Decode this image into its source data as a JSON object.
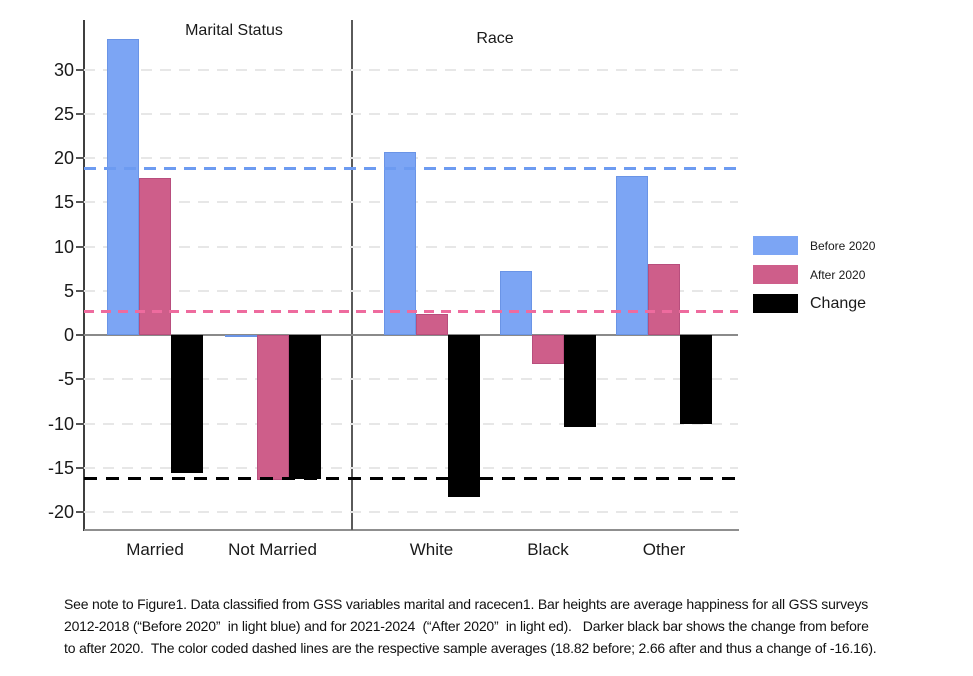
{
  "chart_data": {
    "type": "bar",
    "title": "",
    "ylabel": "",
    "xlabel": "",
    "ylim": [
      -22.0,
      35.6
    ],
    "yticks": [
      30,
      25,
      20,
      15,
      10,
      5,
      0,
      -5,
      -10,
      -15,
      -20
    ],
    "grid": "dashed horizontal",
    "legend_position": "right",
    "panels": [
      {
        "title": "Marital Status",
        "categories": [
          "Married",
          "Not Married"
        ],
        "series": [
          {
            "name": "Before 2020",
            "values": [
              33.4,
              -0.1
            ]
          },
          {
            "name": "After 2020",
            "values": [
              17.8,
              -16.3
            ]
          },
          {
            "name": "Change",
            "values": [
              -15.6,
              -16.2
            ]
          }
        ]
      },
      {
        "title": "Race",
        "categories": [
          "White",
          "Black",
          "Other"
        ],
        "series": [
          {
            "name": "Before 2020",
            "values": [
              20.7,
              7.2,
              18.0
            ]
          },
          {
            "name": "After 2020",
            "values": [
              2.4,
              -3.2,
              8.0
            ]
          },
          {
            "name": "Change",
            "values": [
              -18.3,
              -10.4,
              -10.0
            ]
          }
        ]
      }
    ],
    "colors": {
      "before": "#7CA5F4",
      "after": "#CE5E8A",
      "change": "#000000"
    },
    "reference_lines": [
      {
        "name": "before-average",
        "value": 18.82,
        "color": "#6D9BF1",
        "style": "dashed"
      },
      {
        "name": "after-average",
        "value": 2.66,
        "color": "#EE6B9E",
        "style": "dashed"
      },
      {
        "name": "change-average",
        "value": -16.16,
        "color": "#000000",
        "style": "dashed"
      }
    ]
  },
  "legend": {
    "items": [
      {
        "label": "Before 2020",
        "color": "#7CA5F4"
      },
      {
        "label": "After 2020",
        "color": "#CE5E8A"
      },
      {
        "label": "Change",
        "color": "#000000"
      }
    ]
  },
  "caption": {
    "line1": "See note to Figure1. Data classified from GSS variables marital and racecen1. Bar heights are average happiness for all GSS surveys",
    "line2": "2012-2018 (“Before 2020”  in light blue) and for 2021-2024  (“After 2020”  in light ed).   Darker black bar shows the change from before",
    "line3": "to after 2020.  The color coded dashed lines are the respective sample averages (18.82 before; 2.66 after and thus a change of -16.16)."
  }
}
